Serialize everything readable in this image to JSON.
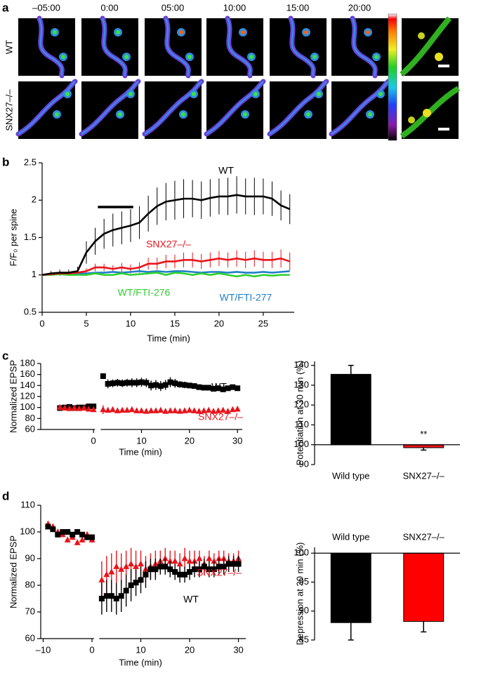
{
  "panel_labels": [
    "a",
    "b",
    "c",
    "d"
  ],
  "panel_a": {
    "times": [
      "–05:00",
      "0:00",
      "05:00",
      "10:00",
      "15:00",
      "20:00"
    ],
    "rows": [
      "WT",
      "SNX27–/–"
    ]
  },
  "chart_data": [
    {
      "type": "line",
      "xlabel": "Time (min)",
      "ylabel": "F/F₀ per spine",
      "x": [
        0,
        1,
        2,
        3,
        4,
        5,
        6,
        7,
        8,
        9,
        10,
        11,
        12,
        13,
        14,
        15,
        16,
        17,
        18,
        19,
        20,
        21,
        22,
        23,
        24,
        25,
        26,
        27,
        28
      ],
      "xlim": [
        0,
        28.5
      ],
      "xticks": [
        0,
        5,
        10,
        15,
        20,
        25
      ],
      "ylim": [
        0.5,
        2.5
      ],
      "yticks": [
        0.5,
        1,
        1.5,
        2,
        2.5
      ],
      "stimulus_x": [
        6.3,
        10.3
      ],
      "series": [
        {
          "name": "WT",
          "color": "#000000",
          "values": [
            1.0,
            1.02,
            1.03,
            1.03,
            1.05,
            1.3,
            1.45,
            1.55,
            1.6,
            1.63,
            1.66,
            1.7,
            1.82,
            1.92,
            1.98,
            2.0,
            2.02,
            2.02,
            2.0,
            2.03,
            2.05,
            2.05,
            2.07,
            2.05,
            2.05,
            2.05,
            2.02,
            1.93,
            1.88
          ],
          "errors": [
            0.02,
            0.03,
            0.04,
            0.04,
            0.06,
            0.15,
            0.18,
            0.2,
            0.22,
            0.22,
            0.22,
            0.22,
            0.24,
            0.25,
            0.25,
            0.26,
            0.26,
            0.25,
            0.25,
            0.25,
            0.24,
            0.25,
            0.25,
            0.24,
            0.25,
            0.24,
            0.23,
            0.2,
            0.2
          ]
        },
        {
          "name": "SNX27–/–",
          "color": "#e8141b",
          "values": [
            1.0,
            1.01,
            1.02,
            1.02,
            1.03,
            1.05,
            1.1,
            1.1,
            1.08,
            1.1,
            1.08,
            1.1,
            1.15,
            1.15,
            1.18,
            1.18,
            1.2,
            1.2,
            1.18,
            1.2,
            1.22,
            1.2,
            1.22,
            1.2,
            1.22,
            1.2,
            1.2,
            1.22,
            1.18
          ],
          "errors": [
            0.02,
            0.02,
            0.03,
            0.03,
            0.03,
            0.04,
            0.05,
            0.05,
            0.05,
            0.06,
            0.06,
            0.07,
            0.08,
            0.08,
            0.09,
            0.09,
            0.1,
            0.1,
            0.1,
            0.1,
            0.1,
            0.1,
            0.11,
            0.11,
            0.11,
            0.11,
            0.11,
            0.12,
            0.12
          ]
        },
        {
          "name": "WT/FTI-276",
          "color": "#2fd02f",
          "values": [
            1.0,
            1.0,
            1.01,
            1.0,
            1.0,
            1.0,
            1.02,
            1.0,
            1.0,
            1.02,
            1.0,
            1.01,
            1.02,
            1.03,
            1.0,
            1.03,
            1.02,
            1.0,
            1.02,
            1.0,
            1.02,
            1.0,
            0.98,
            1.0,
            0.98,
            1.0,
            0.99,
            1.0,
            1.0
          ]
        },
        {
          "name": "WT/FTI-277",
          "color": "#1f7fc8",
          "values": [
            1.0,
            1.0,
            1.02,
            1.01,
            1.02,
            1.02,
            1.03,
            1.03,
            1.04,
            1.03,
            1.04,
            1.05,
            1.04,
            1.05,
            1.04,
            1.05,
            1.05,
            1.04,
            1.03,
            1.04,
            1.04,
            1.03,
            1.04,
            1.03,
            1.03,
            1.04,
            1.03,
            1.04,
            1.05
          ]
        }
      ]
    },
    {
      "type": "scatter",
      "xlabel": "Time (min)",
      "ylabel": "Normalized EPSP",
      "x": [
        -7,
        -6,
        -5,
        -4,
        -3,
        -2,
        -1,
        0,
        2,
        3,
        4,
        5,
        6,
        7,
        8,
        9,
        10,
        11,
        12,
        13,
        14,
        15,
        16,
        17,
        18,
        19,
        20,
        21,
        22,
        23,
        24,
        25,
        26,
        27,
        28,
        29,
        30
      ],
      "xlim": [
        -11,
        31
      ],
      "xbreak": [
        0.3,
        1.5
      ],
      "xticks": [
        0,
        10,
        20,
        30
      ],
      "ylim": [
        60,
        180
      ],
      "yticks": [
        60,
        80,
        100,
        120,
        140,
        160,
        180
      ],
      "series": [
        {
          "name": "WT",
          "color": "#000000",
          "marker": "square",
          "values": [
            99,
            100,
            101,
            99,
            100,
            100,
            102,
            102,
            157,
            143,
            144,
            145,
            144,
            145,
            145,
            145,
            146,
            145,
            140,
            141,
            139,
            141,
            146,
            144,
            142,
            141,
            140,
            139,
            137,
            136,
            136,
            134,
            135,
            133,
            135,
            137,
            135
          ],
          "errors": [
            3,
            3,
            3,
            3,
            3,
            3,
            3,
            3,
            5,
            8,
            7,
            7,
            7,
            7,
            8,
            8,
            8,
            8,
            9,
            9,
            9,
            9,
            9,
            8,
            6,
            6,
            5,
            5,
            5,
            5,
            5,
            4,
            4,
            4,
            4,
            4,
            4
          ]
        },
        {
          "name": "SNX27–/–",
          "color": "#e8141b",
          "marker": "triangle",
          "values": [
            100,
            99,
            98,
            99,
            98,
            99,
            97,
            96,
            96,
            95,
            96,
            94,
            95,
            95,
            96,
            94,
            94,
            93,
            94,
            94,
            95,
            93,
            94,
            94,
            93,
            94,
            95,
            94,
            93,
            94,
            95,
            93,
            94,
            95,
            93,
            96,
            97
          ],
          "errors": [
            3,
            3,
            3,
            3,
            3,
            3,
            3,
            3,
            8,
            3,
            3,
            3,
            3,
            3,
            3,
            3,
            3,
            3,
            3,
            3,
            3,
            3,
            3,
            3,
            3,
            3,
            3,
            3,
            3,
            3,
            3,
            3,
            3,
            3,
            3,
            3,
            3
          ]
        }
      ]
    },
    {
      "type": "bar",
      "ylabel": "Potentiation at 30 min (%)",
      "categories": [
        "Wild type",
        "SNX27–/–"
      ],
      "values": [
        135.5,
        98.5
      ],
      "errors": [
        4.5,
        1.2
      ],
      "colors": [
        "#000000",
        "#e8141b"
      ],
      "baseline": 100,
      "category_labels": "bottom",
      "annotations": [
        "**"
      ],
      "ylim": [
        90,
        142
      ],
      "yticks": [
        90,
        100,
        110,
        120,
        130,
        140
      ]
    },
    {
      "type": "scatter",
      "xlabel": "Time (min)",
      "ylabel": "Normalized EPSP",
      "x": [
        -9,
        -8,
        -7,
        -6,
        -5,
        -4,
        -3,
        -2,
        -1,
        0,
        2,
        3,
        4,
        5,
        6,
        7,
        8,
        9,
        10,
        11,
        12,
        13,
        14,
        15,
        16,
        17,
        18,
        19,
        20,
        21,
        22,
        23,
        24,
        25,
        26,
        27,
        28,
        29,
        30
      ],
      "xlim": [
        -10.5,
        31.5
      ],
      "xbreak": [
        0.4,
        1.5
      ],
      "xticks": [
        {
          "value": -10,
          "label": "–10"
        },
        0,
        10,
        20,
        30
      ],
      "ylim": [
        60,
        110
      ],
      "yticks": [
        60,
        70,
        80,
        90,
        100,
        110
      ],
      "series": [
        {
          "name": "SNX27–/–",
          "color": "#e8141b",
          "marker": "triangle",
          "values": [
            103,
            102,
            100,
            99,
            97,
            98,
            96,
            97,
            99,
            97,
            82,
            84,
            85,
            87,
            86,
            87,
            88,
            87,
            88,
            86,
            87,
            88,
            89,
            90,
            89,
            89,
            88,
            90,
            89,
            89,
            90,
            88,
            90,
            89,
            90,
            90,
            89,
            89,
            90
          ],
          "errors": [
            1,
            1,
            1,
            1,
            1,
            1,
            1,
            1,
            1,
            1,
            7,
            7,
            7,
            6,
            6,
            6,
            6,
            6,
            5,
            5,
            5,
            5,
            4,
            4,
            4,
            4,
            4,
            4,
            4,
            4,
            3,
            3,
            3,
            3,
            3,
            3,
            3,
            3,
            3
          ]
        },
        {
          "name": "WT",
          "color": "#000000",
          "marker": "square",
          "values": [
            102,
            101,
            99,
            100,
            100,
            99,
            100,
            99,
            98,
            98,
            75,
            76,
            76,
            75,
            76,
            78,
            80,
            81,
            82,
            84,
            86,
            86,
            87,
            87,
            86,
            85,
            84,
            84,
            85,
            86,
            86,
            87,
            86,
            86,
            87,
            87,
            88,
            88,
            88
          ],
          "errors": [
            1,
            1,
            1,
            1,
            1,
            1,
            1,
            1,
            1,
            1,
            6,
            6,
            6,
            6,
            6,
            6,
            6,
            5,
            5,
            5,
            4,
            4,
            3,
            3,
            3,
            3,
            3,
            3,
            3,
            3,
            3,
            3,
            3,
            3,
            3,
            3,
            3,
            3,
            3
          ]
        }
      ]
    },
    {
      "type": "bar",
      "ylabel": "Depression at 30 min (%)",
      "categories": [
        "Wild type",
        "SNX27–/–"
      ],
      "values": [
        88,
        88.2
      ],
      "errors": [
        3,
        1.8
      ],
      "colors": [
        "#000000",
        "#ff0000"
      ],
      "baseline": 100,
      "category_labels": "top",
      "ylim": [
        85,
        101
      ],
      "yticks": [
        85,
        90,
        95,
        100
      ]
    }
  ]
}
